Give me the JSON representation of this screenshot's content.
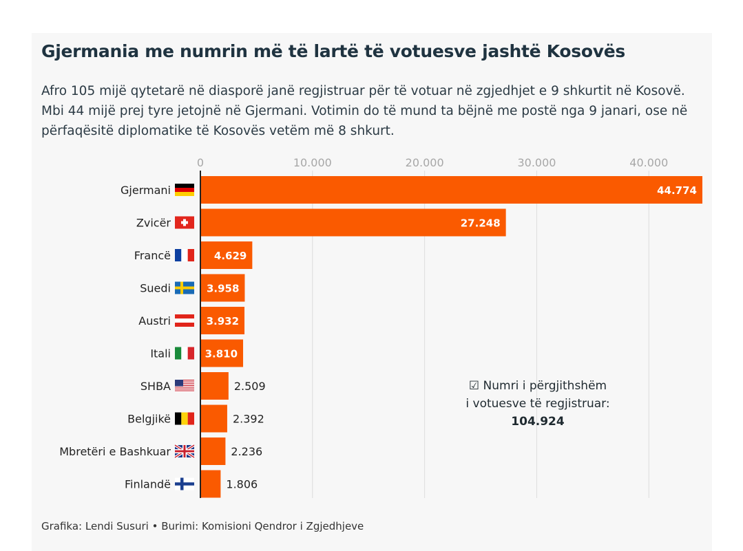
{
  "title": "Gjermania me numrin më të lartë të votuesve jashtë Kosovës",
  "subtitle": "Afro 105 mijë qytetarë në diasporë janë regjistruar për të votuar në zgjedhjet e 9 shkurtit në Kosovë. Mbi 44 mijë prej tyre jetojnë në Gjermani. Votimin do të mund ta bëjnë me postë nga 9 janari, ose në përfaqësitë diplomatike të Kosovës vetëm më 8 shkurt.",
  "total": {
    "icon": "checkbox-icon",
    "line1": "☑ Numri i përgjithshëm",
    "line2": "i votuesve të regjistruar:",
    "value": "104.924"
  },
  "source": "Grafika: Lendi Susuri • Burimi: Komisioni Qendror i Zgjedhjeve",
  "colors": {
    "bar": "#fa5a00",
    "grid": "#dcdcdc",
    "tick": "#a7a7a7"
  },
  "chart_data": {
    "type": "bar",
    "orientation": "horizontal",
    "xlim": [
      0,
      44774
    ],
    "ticks": [
      0,
      10000,
      20000,
      30000,
      40000
    ],
    "tick_labels": [
      "0",
      "10.000",
      "20.000",
      "30.000",
      "40.000"
    ],
    "grid": true,
    "categories": [
      "Gjermani",
      "Zvicër",
      "Francë",
      "Suedi",
      "Austri",
      "Itali",
      "SHBA",
      "Belgjikë",
      "Mbretëri e Bashkuar",
      "Finlandë"
    ],
    "flags": [
      "germany",
      "switzerland",
      "france",
      "sweden",
      "austria",
      "italy",
      "usa",
      "belgium",
      "uk",
      "finland"
    ],
    "values": [
      44774,
      27248,
      4629,
      3958,
      3932,
      3810,
      2509,
      2392,
      2236,
      1806
    ],
    "value_labels": [
      "44.774",
      "27.248",
      "4.629",
      "3.958",
      "3.932",
      "3.810",
      "2.509",
      "2.392",
      "2.236",
      "1.806"
    ]
  }
}
